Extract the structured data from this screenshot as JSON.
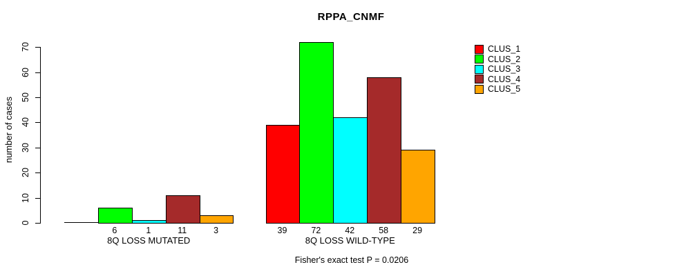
{
  "chart_data": {
    "type": "bar",
    "title": "RPPA_CNMF",
    "ylabel": "number of cases",
    "ylim": [
      0,
      70
    ],
    "yticks": [
      0,
      10,
      20,
      30,
      40,
      50,
      60,
      70
    ],
    "categories": [
      "8Q LOSS MUTATED",
      "8Q LOSS WILD-TYPE"
    ],
    "series": [
      {
        "name": "CLUS_1",
        "color": "#FF0000",
        "values": [
          0,
          39
        ]
      },
      {
        "name": "CLUS_2",
        "color": "#00FF00",
        "values": [
          6,
          72
        ]
      },
      {
        "name": "CLUS_3",
        "color": "#00FFFF",
        "values": [
          1,
          42
        ]
      },
      {
        "name": "CLUS_4",
        "color": "#A52A2A",
        "values": [
          11,
          58
        ]
      },
      {
        "name": "CLUS_5",
        "color": "#FFA500",
        "values": [
          3,
          29
        ]
      }
    ],
    "bar_value_labels": {
      "8Q LOSS MUTATED": [
        null,
        6,
        1,
        11,
        3
      ],
      "8Q LOSS WILD-TYPE": [
        39,
        72,
        42,
        58,
        29
      ]
    },
    "legend_position": "right",
    "grid": false,
    "annotation": "Fisher's exact test P = 0.0206"
  }
}
